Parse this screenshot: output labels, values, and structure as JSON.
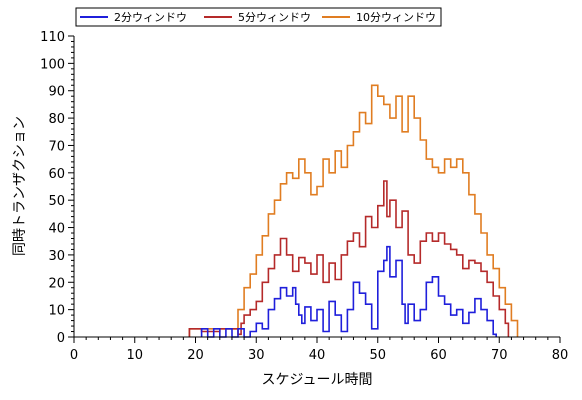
{
  "chart_data": {
    "type": "line",
    "xlabel": "スケジュール時間",
    "ylabel": "同時トランザクション",
    "xlim": [
      0,
      80
    ],
    "ylim": [
      0,
      110
    ],
    "x_ticks": [
      "0",
      "10",
      "20",
      "30",
      "40",
      "50",
      "60",
      "70",
      "80"
    ],
    "y_ticks": [
      "0",
      "10",
      "20",
      "30",
      "40",
      "50",
      "60",
      "70",
      "80",
      "90",
      "100",
      "110"
    ],
    "grid": false,
    "legend_position": "top-left",
    "series": [
      {
        "name": "2分ウィンドウ",
        "color": "#1f1fdb",
        "points": [
          [
            21,
            0
          ],
          [
            21,
            3
          ],
          [
            22,
            3
          ],
          [
            22,
            0
          ],
          [
            23,
            0
          ],
          [
            23,
            3
          ],
          [
            24,
            3
          ],
          [
            24,
            0
          ],
          [
            25,
            0
          ],
          [
            25,
            3
          ],
          [
            26,
            3
          ],
          [
            26,
            0
          ],
          [
            27,
            0
          ],
          [
            27,
            3
          ],
          [
            28,
            3
          ],
          [
            28,
            0
          ],
          [
            29,
            0
          ],
          [
            29,
            2
          ],
          [
            30,
            2
          ],
          [
            30,
            5
          ],
          [
            31,
            5
          ],
          [
            31,
            3
          ],
          [
            32,
            3
          ],
          [
            32,
            10
          ],
          [
            33,
            10
          ],
          [
            33,
            14
          ],
          [
            34,
            14
          ],
          [
            34,
            18
          ],
          [
            35,
            18
          ],
          [
            35,
            15
          ],
          [
            36,
            15
          ],
          [
            36,
            18
          ],
          [
            36.5,
            18
          ],
          [
            36.5,
            12
          ],
          [
            37,
            12
          ],
          [
            37,
            8
          ],
          [
            37.5,
            8
          ],
          [
            37.5,
            5
          ],
          [
            38,
            5
          ],
          [
            38,
            11
          ],
          [
            39,
            11
          ],
          [
            39,
            6
          ],
          [
            40,
            6
          ],
          [
            40,
            10
          ],
          [
            41,
            10
          ],
          [
            41,
            2
          ],
          [
            42,
            2
          ],
          [
            42,
            13
          ],
          [
            43,
            13
          ],
          [
            43,
            8
          ],
          [
            44,
            8
          ],
          [
            44,
            2
          ],
          [
            45,
            2
          ],
          [
            45,
            10
          ],
          [
            46,
            10
          ],
          [
            46,
            20
          ],
          [
            47,
            20
          ],
          [
            47,
            16
          ],
          [
            48,
            16
          ],
          [
            48,
            12
          ],
          [
            49,
            12
          ],
          [
            49,
            3
          ],
          [
            50,
            3
          ],
          [
            50,
            24
          ],
          [
            51,
            24
          ],
          [
            51,
            28
          ],
          [
            51.5,
            28
          ],
          [
            51.5,
            33
          ],
          [
            52,
            33
          ],
          [
            52,
            22
          ],
          [
            53,
            22
          ],
          [
            53,
            28
          ],
          [
            54,
            28
          ],
          [
            54,
            12
          ],
          [
            54.5,
            12
          ],
          [
            54.5,
            5
          ],
          [
            55,
            5
          ],
          [
            55,
            12
          ],
          [
            56,
            12
          ],
          [
            56,
            6
          ],
          [
            57,
            6
          ],
          [
            57,
            10
          ],
          [
            58,
            10
          ],
          [
            58,
            20
          ],
          [
            59,
            20
          ],
          [
            59,
            22
          ],
          [
            60,
            22
          ],
          [
            60,
            15
          ],
          [
            61,
            15
          ],
          [
            61,
            12
          ],
          [
            62,
            12
          ],
          [
            62,
            8
          ],
          [
            63,
            8
          ],
          [
            63,
            10
          ],
          [
            64,
            10
          ],
          [
            64,
            5
          ],
          [
            65,
            5
          ],
          [
            65,
            9
          ],
          [
            66,
            9
          ],
          [
            66,
            14
          ],
          [
            67,
            14
          ],
          [
            67,
            10
          ],
          [
            68,
            10
          ],
          [
            68,
            6
          ],
          [
            69,
            6
          ],
          [
            69,
            1
          ],
          [
            69.5,
            1
          ],
          [
            69.5,
            0
          ]
        ]
      },
      {
        "name": "5分ウィンドウ",
        "color": "#b52a2a",
        "points": [
          [
            19,
            0
          ],
          [
            19,
            3
          ],
          [
            21,
            3
          ],
          [
            21,
            2
          ],
          [
            24,
            2
          ],
          [
            24,
            3
          ],
          [
            27,
            3
          ],
          [
            27,
            1
          ],
          [
            27.5,
            1
          ],
          [
            27.5,
            5
          ],
          [
            28,
            5
          ],
          [
            28,
            8
          ],
          [
            29,
            8
          ],
          [
            29,
            10
          ],
          [
            30,
            10
          ],
          [
            30,
            13
          ],
          [
            31,
            13
          ],
          [
            31,
            20
          ],
          [
            32,
            20
          ],
          [
            32,
            25
          ],
          [
            33,
            25
          ],
          [
            33,
            30
          ],
          [
            34,
            30
          ],
          [
            34,
            36
          ],
          [
            35,
            36
          ],
          [
            35,
            30
          ],
          [
            36,
            30
          ],
          [
            36,
            24
          ],
          [
            37,
            24
          ],
          [
            37,
            29
          ],
          [
            38,
            29
          ],
          [
            38,
            27
          ],
          [
            39,
            27
          ],
          [
            39,
            23
          ],
          [
            40,
            23
          ],
          [
            40,
            30
          ],
          [
            41,
            30
          ],
          [
            41,
            20
          ],
          [
            42,
            20
          ],
          [
            42,
            27
          ],
          [
            43,
            27
          ],
          [
            43,
            21
          ],
          [
            44,
            21
          ],
          [
            44,
            30
          ],
          [
            45,
            30
          ],
          [
            45,
            35
          ],
          [
            46,
            35
          ],
          [
            46,
            38
          ],
          [
            47,
            38
          ],
          [
            47,
            33
          ],
          [
            48,
            33
          ],
          [
            48,
            44
          ],
          [
            49,
            44
          ],
          [
            49,
            40
          ],
          [
            50,
            40
          ],
          [
            50,
            48
          ],
          [
            51,
            48
          ],
          [
            51,
            57
          ],
          [
            51.5,
            57
          ],
          [
            51.5,
            44
          ],
          [
            52,
            44
          ],
          [
            52,
            50
          ],
          [
            53,
            50
          ],
          [
            53,
            40
          ],
          [
            54,
            40
          ],
          [
            54,
            46
          ],
          [
            55,
            46
          ],
          [
            55,
            30
          ],
          [
            56,
            30
          ],
          [
            56,
            27
          ],
          [
            57,
            27
          ],
          [
            57,
            35
          ],
          [
            58,
            35
          ],
          [
            58,
            38
          ],
          [
            59,
            38
          ],
          [
            59,
            35
          ],
          [
            60,
            35
          ],
          [
            60,
            38
          ],
          [
            61,
            38
          ],
          [
            61,
            34
          ],
          [
            62,
            34
          ],
          [
            62,
            32
          ],
          [
            63,
            32
          ],
          [
            63,
            30
          ],
          [
            64,
            30
          ],
          [
            64,
            25
          ],
          [
            65,
            25
          ],
          [
            65,
            28
          ],
          [
            66,
            28
          ],
          [
            66,
            27
          ],
          [
            67,
            27
          ],
          [
            67,
            24
          ],
          [
            68,
            24
          ],
          [
            68,
            20
          ],
          [
            69,
            20
          ],
          [
            69,
            15
          ],
          [
            70,
            15
          ],
          [
            70,
            10
          ],
          [
            71,
            10
          ],
          [
            71,
            5
          ],
          [
            71.5,
            5
          ],
          [
            71.5,
            0
          ]
        ]
      },
      {
        "name": "10分ウィンドウ",
        "color": "#e07d22",
        "points": [
          [
            19,
            0
          ],
          [
            19,
            3
          ],
          [
            27,
            3
          ],
          [
            27,
            10
          ],
          [
            28,
            10
          ],
          [
            28,
            18
          ],
          [
            29,
            18
          ],
          [
            29,
            23
          ],
          [
            30,
            23
          ],
          [
            30,
            30
          ],
          [
            31,
            30
          ],
          [
            31,
            37
          ],
          [
            32,
            37
          ],
          [
            32,
            45
          ],
          [
            33,
            45
          ],
          [
            33,
            50
          ],
          [
            34,
            50
          ],
          [
            34,
            56
          ],
          [
            35,
            56
          ],
          [
            35,
            60
          ],
          [
            36,
            60
          ],
          [
            36,
            58
          ],
          [
            37,
            58
          ],
          [
            37,
            65
          ],
          [
            38,
            65
          ],
          [
            38,
            60
          ],
          [
            39,
            60
          ],
          [
            39,
            52
          ],
          [
            40,
            52
          ],
          [
            40,
            55
          ],
          [
            41,
            55
          ],
          [
            41,
            65
          ],
          [
            42,
            65
          ],
          [
            42,
            60
          ],
          [
            43,
            60
          ],
          [
            43,
            68
          ],
          [
            44,
            68
          ],
          [
            44,
            62
          ],
          [
            45,
            62
          ],
          [
            45,
            70
          ],
          [
            46,
            70
          ],
          [
            46,
            75
          ],
          [
            47,
            75
          ],
          [
            47,
            82
          ],
          [
            48,
            82
          ],
          [
            48,
            78
          ],
          [
            49,
            78
          ],
          [
            49,
            92
          ],
          [
            50,
            92
          ],
          [
            50,
            88
          ],
          [
            51,
            88
          ],
          [
            51,
            85
          ],
          [
            52,
            85
          ],
          [
            52,
            80
          ],
          [
            53,
            80
          ],
          [
            53,
            88
          ],
          [
            54,
            88
          ],
          [
            54,
            75
          ],
          [
            55,
            75
          ],
          [
            55,
            88
          ],
          [
            56,
            88
          ],
          [
            56,
            80
          ],
          [
            57,
            80
          ],
          [
            57,
            72
          ],
          [
            58,
            72
          ],
          [
            58,
            65
          ],
          [
            59,
            65
          ],
          [
            59,
            62
          ],
          [
            60,
            62
          ],
          [
            60,
            60
          ],
          [
            61,
            60
          ],
          [
            61,
            65
          ],
          [
            62,
            65
          ],
          [
            62,
            62
          ],
          [
            63,
            62
          ],
          [
            63,
            65
          ],
          [
            64,
            65
          ],
          [
            64,
            60
          ],
          [
            65,
            60
          ],
          [
            65,
            52
          ],
          [
            66,
            52
          ],
          [
            66,
            45
          ],
          [
            67,
            45
          ],
          [
            67,
            38
          ],
          [
            68,
            38
          ],
          [
            68,
            30
          ],
          [
            69,
            30
          ],
          [
            69,
            25
          ],
          [
            70,
            25
          ],
          [
            70,
            18
          ],
          [
            71,
            18
          ],
          [
            71,
            12
          ],
          [
            72,
            12
          ],
          [
            72,
            6
          ],
          [
            73,
            6
          ],
          [
            73,
            0
          ]
        ]
      }
    ]
  }
}
